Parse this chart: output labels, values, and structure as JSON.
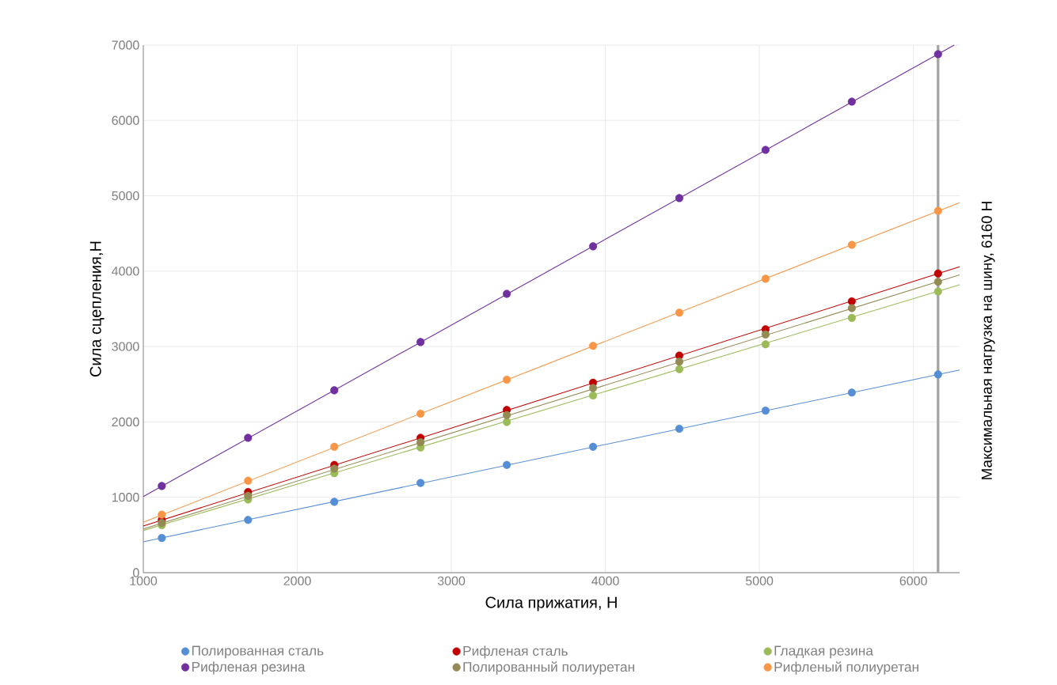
{
  "chart_data": {
    "type": "scatter",
    "xlabel": "Сила прижатия, Н",
    "ylabel": "Сила сцепления,Н",
    "x": [
      1120,
      1680,
      2240,
      2800,
      3360,
      3920,
      4480,
      5040,
      5600,
      6160
    ],
    "xlim": [
      1000,
      6300
    ],
    "xticks": [
      1000,
      2000,
      3000,
      4000,
      5000,
      6000
    ],
    "ylim": [
      0,
      7000
    ],
    "yticks": [
      0,
      1000,
      2000,
      3000,
      4000,
      5000,
      6000,
      7000
    ],
    "grid": true,
    "legend": "bottom",
    "series": [
      {
        "name": "Полированная сталь",
        "marker": "circle",
        "color": "#558ed5",
        "values": [
          460,
          700,
          940,
          1190,
          1430,
          1670,
          1910,
          2150,
          2390,
          2630
        ]
      },
      {
        "name": "Рифленая сталь",
        "marker": "circle",
        "color": "#c00000",
        "values": [
          700,
          1070,
          1430,
          1790,
          2160,
          2520,
          2880,
          3230,
          3600,
          3970
        ]
      },
      {
        "name": "Гладкая резина",
        "marker": "circle",
        "color": "#9bbb59",
        "values": [
          630,
          970,
          1320,
          1660,
          2000,
          2350,
          2700,
          3030,
          3380,
          3730
        ]
      },
      {
        "name": "Рифленая резина",
        "marker": "circle",
        "color": "#7030a0",
        "values": [
          1150,
          1790,
          2420,
          3060,
          3700,
          4330,
          4970,
          5610,
          6250,
          6880
        ]
      },
      {
        "name": "Полированный полиуретан",
        "marker": "circle",
        "color": "#948a54",
        "values": [
          660,
          1020,
          1380,
          1730,
          2090,
          2450,
          2800,
          3160,
          3510,
          3860
        ]
      },
      {
        "name": "Рифленый полиуретан",
        "marker": "circle",
        "color": "#f79646",
        "values": [
          770,
          1220,
          1670,
          2110,
          2560,
          3010,
          3450,
          3900,
          4350,
          4800
        ]
      },
      {
        "type": "line",
        "marker": "none",
        "color": "#558ed5",
        "x": [
          1000,
          6300
        ],
        "values": [
          410,
          2690
        ]
      },
      {
        "type": "line",
        "marker": "none",
        "color": "#c00000",
        "x": [
          1000,
          6300
        ],
        "values": [
          620,
          4060
        ]
      },
      {
        "type": "line",
        "marker": "none",
        "color": "#9bbb59",
        "x": [
          1000,
          6300
        ],
        "values": [
          560,
          3820
        ]
      },
      {
        "type": "line",
        "marker": "none",
        "color": "#7030a0",
        "x": [
          1000,
          6265
        ],
        "values": [
          1010,
          7000
        ]
      },
      {
        "type": "line",
        "marker": "none",
        "color": "#948a54",
        "x": [
          1000,
          6300
        ],
        "values": [
          580,
          3950
        ]
      },
      {
        "type": "line",
        "marker": "none",
        "color": "#f79646",
        "x": [
          1000,
          6300
        ],
        "values": [
          670,
          4910
        ]
      }
    ],
    "ref_lines": [
      {
        "axis": "x",
        "value": 6160,
        "label": "Максимальная нагрузка на шину, 6160 Н",
        "color": "#a6a6a6"
      }
    ]
  }
}
